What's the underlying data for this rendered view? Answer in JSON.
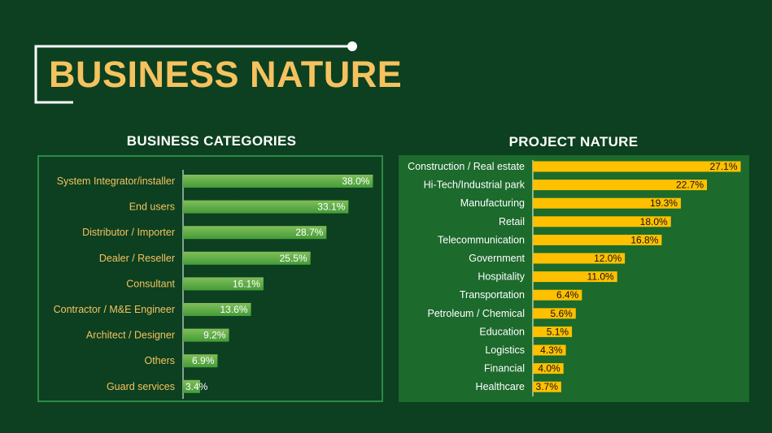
{
  "page": {
    "title": "BUSINESS NATURE"
  },
  "colors": {
    "background": "#0c4020",
    "title": "#f5c25f",
    "left_bar_light": "#80be5a",
    "left_bar_dark": "#449c38",
    "right_panel": "#1c6a2c",
    "right_bar": "#ffc000",
    "frame_line": "#ffffff"
  },
  "chart_data": [
    {
      "type": "bar",
      "orientation": "horizontal",
      "title": "BUSINESS CATEGORIES",
      "categories": [
        "System Integrator/installer",
        "End users",
        "Distributor / Importer",
        "Dealer / Reseller",
        "Consultant",
        "Contractor / M&E Engineer",
        "Architect / Designer",
        "Others",
        "Guard services"
      ],
      "values": [
        38.0,
        33.1,
        28.7,
        25.5,
        16.1,
        13.6,
        9.2,
        6.9,
        3.4
      ],
      "value_labels": [
        "38.0%",
        "33.1%",
        "28.7%",
        "25.5%",
        "16.1%",
        "13.6%",
        "9.2%",
        "6.9%",
        "3.4%"
      ],
      "unit": "%",
      "xlim": [
        0,
        42
      ],
      "grid": false,
      "legend": "none"
    },
    {
      "type": "bar",
      "orientation": "horizontal",
      "title": "PROJECT NATURE",
      "categories": [
        "Construction / Real estate",
        "Hi-Tech/Industrial park",
        "Manufacturing",
        "Retail",
        "Telecommunication",
        "Government",
        "Hospitality",
        "Transportation",
        "Petroleum / Chemical",
        "Education",
        "Logistics",
        "Financial",
        "Healthcare"
      ],
      "values": [
        27.1,
        22.7,
        19.3,
        18.0,
        16.8,
        12.0,
        11.0,
        6.4,
        5.6,
        5.1,
        4.3,
        4.0,
        3.7
      ],
      "value_labels": [
        "27.1%",
        "22.7%",
        "19.3%",
        "18.0%",
        "16.8%",
        "12.0%",
        "11.0%",
        "6.4%",
        "5.6%",
        "5.1%",
        "4.3%",
        "4.0%",
        "3.7%"
      ],
      "unit": "%",
      "xlim": [
        0,
        28
      ],
      "grid": false,
      "legend": "none"
    }
  ]
}
